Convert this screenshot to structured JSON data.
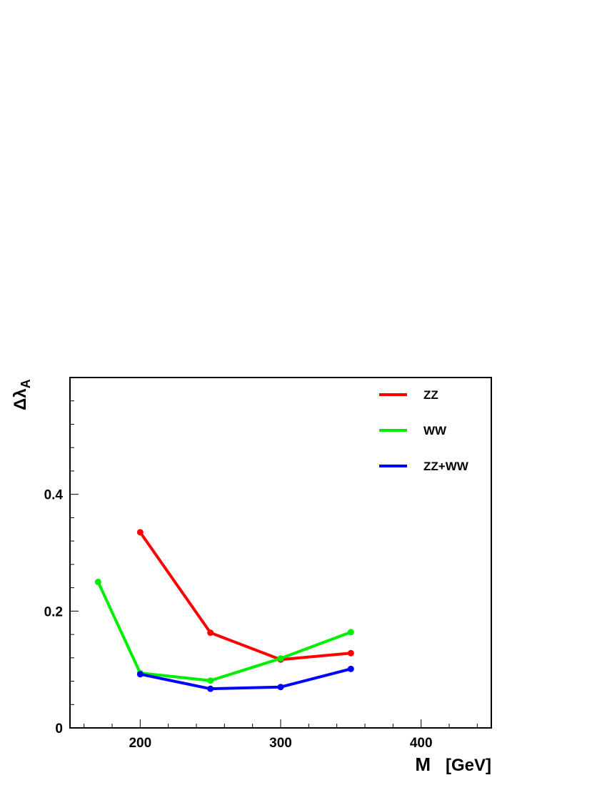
{
  "chart_data": {
    "type": "line",
    "xlabel": "M",
    "xlabel_unit": "[GeV]",
    "ylabel_symbol": "Δλ",
    "ylabel_subscript": "A",
    "xlim": [
      150,
      450
    ],
    "ylim": [
      0,
      0.6
    ],
    "x_ticks": [
      200,
      300,
      400
    ],
    "y_ticks": [
      0,
      0.2,
      0.4
    ],
    "x_tick_labels": [
      "200",
      "300",
      "400"
    ],
    "y_tick_labels": [
      "0",
      "0.2",
      "0.4"
    ],
    "grid": false,
    "legend_position": "top-right",
    "series": [
      {
        "name": "ZZ",
        "color": "#ff0000",
        "x": [
          200,
          250,
          300,
          350
        ],
        "y": [
          0.335,
          0.163,
          0.117,
          0.128
        ]
      },
      {
        "name": "WW",
        "color": "#00ee00",
        "x": [
          170,
          200,
          250,
          300,
          350
        ],
        "y": [
          0.25,
          0.094,
          0.081,
          0.119,
          0.164
        ]
      },
      {
        "name": "ZZ+WW",
        "color": "#0000ff",
        "x": [
          200,
          250,
          300,
          350
        ],
        "y": [
          0.092,
          0.067,
          0.07,
          0.101
        ]
      }
    ]
  }
}
